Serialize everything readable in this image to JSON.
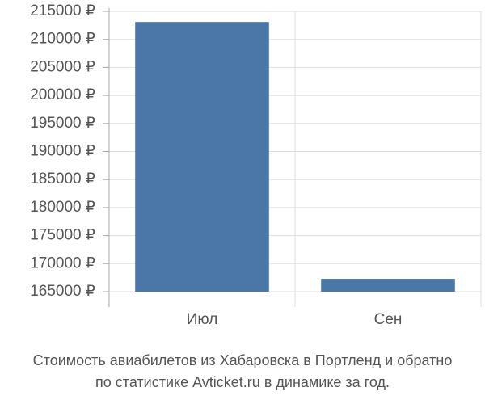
{
  "chart_data": {
    "type": "bar",
    "title": [
      "Стоимость авиабилетов из Хабаровска в Портленд и обратно",
      "по статистике Avticket.ru в динамике за год."
    ],
    "categories": [
      "Июл",
      "Сен"
    ],
    "values": [
      213100,
      167300
    ],
    "color": "#4a76a8",
    "ylim": [
      165000,
      215000
    ],
    "yticks": [
      {
        "value": 165000,
        "label": "165000 ₽"
      },
      {
        "value": 170000,
        "label": "170000 ₽"
      },
      {
        "value": 175000,
        "label": "175000 ₽"
      },
      {
        "value": 180000,
        "label": "180000 ₽"
      },
      {
        "value": 185000,
        "label": "185000 ₽"
      },
      {
        "value": 190000,
        "label": "190000 ₽"
      },
      {
        "value": 195000,
        "label": "195000 ₽"
      },
      {
        "value": 200000,
        "label": "200000 ₽"
      },
      {
        "value": 205000,
        "label": "205000 ₽"
      },
      {
        "value": 210000,
        "label": "210000 ₽"
      },
      {
        "value": 215000,
        "label": "215000 ₽"
      }
    ],
    "grid": true
  }
}
